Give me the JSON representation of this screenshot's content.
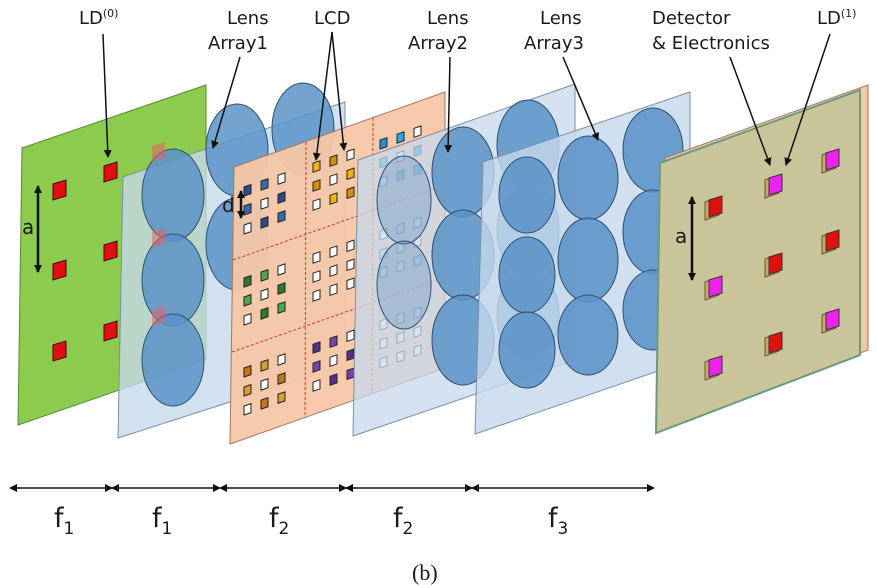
{
  "labels": {
    "ld0": {
      "base": "LD",
      "sup": "(0)"
    },
    "lens_array1": [
      "Lens",
      "Array1"
    ],
    "lcd": "LCD",
    "lens_array2": [
      "Lens",
      "Array2"
    ],
    "lens_array3": [
      "Lens",
      "Array3"
    ],
    "detector": [
      "Detector",
      "& Electronics"
    ],
    "ld1": {
      "base": "LD",
      "sup": "(1)"
    },
    "pitch_a": "a",
    "pitch_d": "d"
  },
  "distances": [
    {
      "symbol": "f",
      "sub": "1"
    },
    {
      "symbol": "f",
      "sub": "1"
    },
    {
      "symbol": "f",
      "sub": "2"
    },
    {
      "symbol": "f",
      "sub": "2"
    },
    {
      "symbol": "f",
      "sub": "3"
    }
  ],
  "caption": "(b)",
  "colors": {
    "ld_plane": "#8dcb4f",
    "lens_plane": "#c5d8ec",
    "lens": "#5b93c7",
    "lcd_plane": "#f6c7a6",
    "detector_plane": "#c9c49a",
    "ld_square": "#e01010",
    "ld1_square": "#ee22ee",
    "lcd_grid": "#e03030"
  }
}
